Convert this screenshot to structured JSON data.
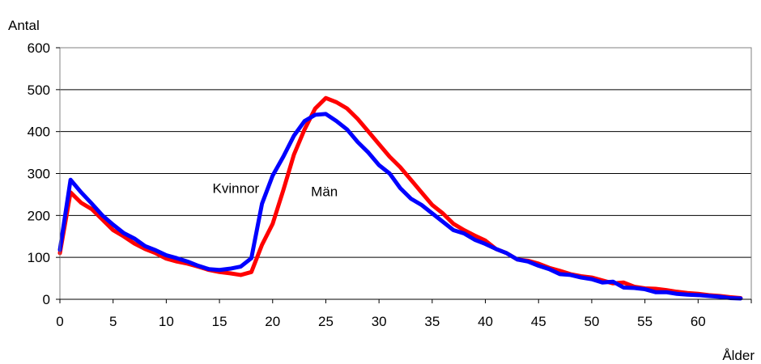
{
  "chart_data": {
    "type": "line",
    "title": "",
    "ylabel": "Antal",
    "xlabel": "Ålder",
    "xlim": [
      0,
      65
    ],
    "ylim": [
      0,
      600
    ],
    "x_ticks": [
      0,
      5,
      10,
      15,
      20,
      25,
      30,
      35,
      40,
      45,
      50,
      55,
      60
    ],
    "y_ticks": [
      0,
      100,
      200,
      300,
      400,
      500,
      600
    ],
    "grid": "horizontal",
    "legend": "none",
    "x": [
      0,
      1,
      2,
      3,
      4,
      5,
      6,
      7,
      8,
      9,
      10,
      11,
      12,
      13,
      14,
      15,
      16,
      17,
      18,
      19,
      20,
      21,
      22,
      23,
      24,
      25,
      26,
      27,
      28,
      29,
      30,
      31,
      32,
      33,
      34,
      35,
      36,
      37,
      38,
      39,
      40,
      41,
      42,
      43,
      44,
      45,
      46,
      47,
      48,
      49,
      50,
      51,
      52,
      53,
      54,
      55,
      56,
      57,
      58,
      59,
      60,
      61,
      62,
      63,
      64
    ],
    "series": [
      {
        "name": "Män",
        "color": "#ff0000",
        "values": [
          110,
          255,
          230,
          215,
          190,
          165,
          150,
          133,
          120,
          110,
          97,
          90,
          85,
          78,
          70,
          65,
          62,
          58,
          65,
          130,
          180,
          260,
          345,
          405,
          455,
          480,
          470,
          455,
          430,
          400,
          370,
          340,
          315,
          285,
          255,
          225,
          205,
          180,
          165,
          152,
          140,
          120,
          110,
          95,
          92,
          85,
          75,
          68,
          60,
          55,
          52,
          45,
          38,
          40,
          30,
          26,
          25,
          22,
          18,
          15,
          13,
          10,
          8,
          5,
          3
        ]
      },
      {
        "name": "Kvinnor",
        "color": "#0000ff",
        "values": [
          118,
          285,
          255,
          228,
          200,
          178,
          158,
          145,
          127,
          117,
          105,
          98,
          90,
          80,
          72,
          70,
          73,
          78,
          98,
          228,
          295,
          340,
          390,
          425,
          440,
          442,
          425,
          405,
          375,
          350,
          320,
          300,
          265,
          240,
          225,
          205,
          185,
          165,
          157,
          142,
          132,
          120,
          110,
          95,
          90,
          80,
          72,
          60,
          58,
          52,
          48,
          40,
          42,
          28,
          27,
          24,
          17,
          17,
          13,
          11,
          10,
          8,
          6,
          3,
          2
        ]
      }
    ],
    "annotations": [
      {
        "text": "Kvinnor",
        "x": 17,
        "y": 265
      },
      {
        "text": "Män",
        "x": 23,
        "y": 258
      }
    ]
  }
}
